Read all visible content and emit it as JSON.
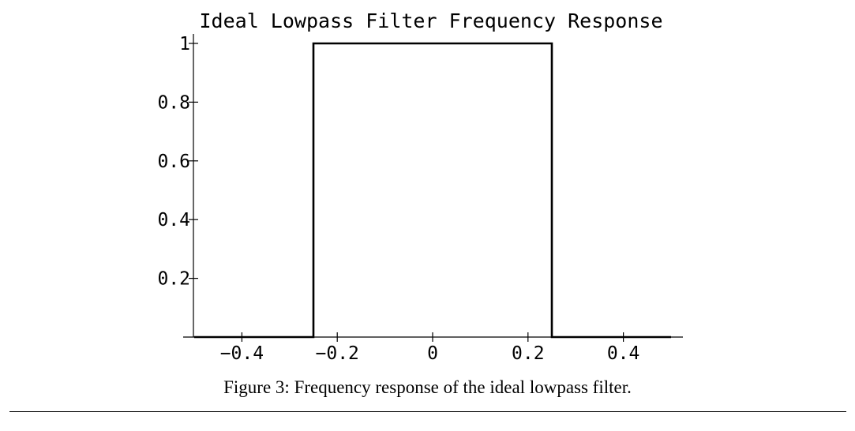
{
  "chart_data": {
    "type": "line",
    "title": "Ideal Lowpass Filter Frequency Response",
    "xlabel": "",
    "ylabel": "",
    "xlim": [
      -0.5,
      0.5
    ],
    "ylim": [
      0,
      1
    ],
    "x_ticks": [
      -0.4,
      -0.2,
      0,
      0.2,
      0.4
    ],
    "x_tick_labels": [
      "−0.4",
      "−0.2",
      "0",
      "0.2",
      "0.4"
    ],
    "y_ticks": [
      0.2,
      0.4,
      0.6,
      0.8,
      1
    ],
    "y_tick_labels": [
      "0.2",
      "0.4",
      "0.6",
      "0.8",
      "1"
    ],
    "grid": false,
    "series": [
      {
        "x": [
          -0.5,
          -0.25,
          -0.25,
          0.25,
          0.25,
          0.5
        ],
        "y": [
          0,
          0,
          1,
          1,
          0,
          0
        ]
      }
    ]
  },
  "caption": "Figure 3: Frequency response of the ideal lowpass filter."
}
